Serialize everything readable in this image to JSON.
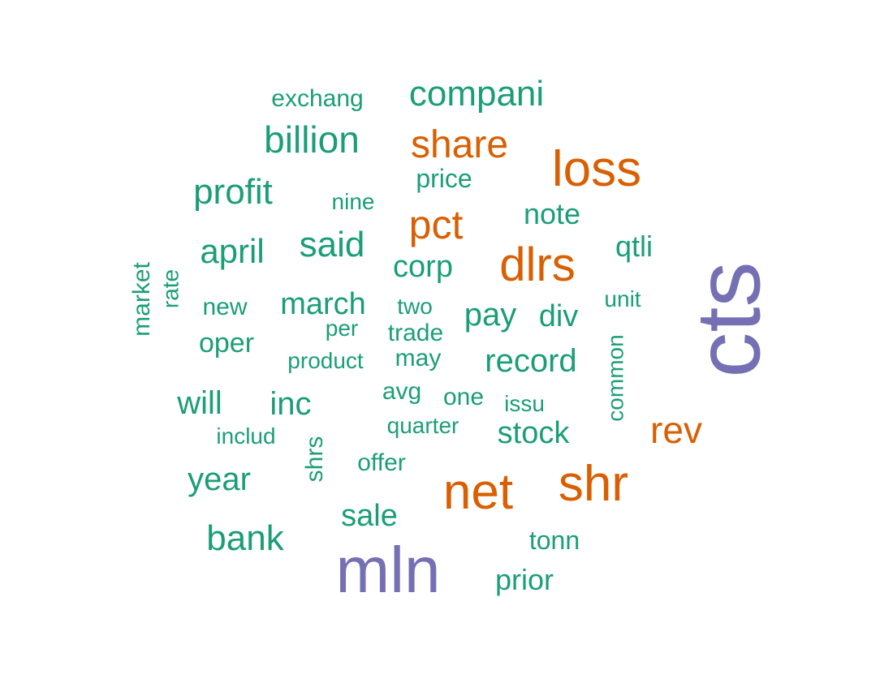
{
  "word_cloud": {
    "colors": {
      "primary": "#1b9e77",
      "secondary": "#d95f02",
      "tertiary": "#7570b3"
    },
    "words": [
      {
        "text": "cts",
        "color": "tertiary",
        "rotated": true
      },
      {
        "text": "mln",
        "color": "tertiary",
        "rotated": false
      },
      {
        "text": "net",
        "color": "secondary",
        "rotated": false
      },
      {
        "text": "shr",
        "color": "secondary",
        "rotated": false
      },
      {
        "text": "loss",
        "color": "secondary",
        "rotated": false
      },
      {
        "text": "dlrs",
        "color": "secondary",
        "rotated": false
      },
      {
        "text": "share",
        "color": "secondary",
        "rotated": false
      },
      {
        "text": "pct",
        "color": "secondary",
        "rotated": false
      },
      {
        "text": "rev",
        "color": "secondary",
        "rotated": false
      },
      {
        "text": "compani",
        "color": "primary",
        "rotated": false
      },
      {
        "text": "billion",
        "color": "primary",
        "rotated": false
      },
      {
        "text": "profit",
        "color": "primary",
        "rotated": false
      },
      {
        "text": "said",
        "color": "primary",
        "rotated": false
      },
      {
        "text": "april",
        "color": "primary",
        "rotated": false
      },
      {
        "text": "bank",
        "color": "primary",
        "rotated": false
      },
      {
        "text": "record",
        "color": "primary",
        "rotated": false
      },
      {
        "text": "year",
        "color": "primary",
        "rotated": false
      },
      {
        "text": "march",
        "color": "primary",
        "rotated": false
      },
      {
        "text": "stock",
        "color": "primary",
        "rotated": false
      },
      {
        "text": "sale",
        "color": "primary",
        "rotated": false
      },
      {
        "text": "pay",
        "color": "primary",
        "rotated": false
      },
      {
        "text": "inc",
        "color": "primary",
        "rotated": false
      },
      {
        "text": "will",
        "color": "primary",
        "rotated": false
      },
      {
        "text": "div",
        "color": "primary",
        "rotated": false
      },
      {
        "text": "corp",
        "color": "primary",
        "rotated": false
      },
      {
        "text": "note",
        "color": "primary",
        "rotated": false
      },
      {
        "text": "qtli",
        "color": "primary",
        "rotated": false
      },
      {
        "text": "prior",
        "color": "primary",
        "rotated": false
      },
      {
        "text": "oper",
        "color": "primary",
        "rotated": false
      },
      {
        "text": "price",
        "color": "primary",
        "rotated": false
      },
      {
        "text": "exchang",
        "color": "primary",
        "rotated": false
      },
      {
        "text": "tonn",
        "color": "primary",
        "rotated": false
      },
      {
        "text": "trade",
        "color": "primary",
        "rotated": false
      },
      {
        "text": "may",
        "color": "primary",
        "rotated": false
      },
      {
        "text": "offer",
        "color": "primary",
        "rotated": false
      },
      {
        "text": "product",
        "color": "primary",
        "rotated": false
      },
      {
        "text": "new",
        "color": "primary",
        "rotated": false
      },
      {
        "text": "nine",
        "color": "primary",
        "rotated": false
      },
      {
        "text": "avg",
        "color": "primary",
        "rotated": false
      },
      {
        "text": "one",
        "color": "primary",
        "rotated": false
      },
      {
        "text": "includ",
        "color": "primary",
        "rotated": false
      },
      {
        "text": "quarter",
        "color": "primary",
        "rotated": false
      },
      {
        "text": "issu",
        "color": "primary",
        "rotated": false
      },
      {
        "text": "unit",
        "color": "primary",
        "rotated": false
      },
      {
        "text": "two",
        "color": "primary",
        "rotated": false
      },
      {
        "text": "per",
        "color": "primary",
        "rotated": false
      },
      {
        "text": "market",
        "color": "primary",
        "rotated": true
      },
      {
        "text": "rate",
        "color": "primary",
        "rotated": true
      },
      {
        "text": "common",
        "color": "primary",
        "rotated": true
      },
      {
        "text": "shrs",
        "color": "primary",
        "rotated": true
      }
    ]
  }
}
